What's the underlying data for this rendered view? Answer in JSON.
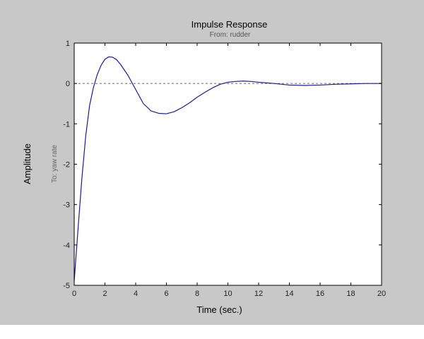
{
  "chart_data": {
    "type": "line",
    "title": "Impulse Response",
    "subtitle": "From: rudder",
    "xlabel": "Time (sec.)",
    "ylabel": "Amplitude",
    "channel_label": "To: yaw rate",
    "xlim": [
      0,
      20
    ],
    "ylim": [
      -5,
      1
    ],
    "xticks": [
      0,
      2,
      4,
      6,
      8,
      10,
      12,
      14,
      16,
      18,
      20
    ],
    "yticks": [
      -5,
      -4,
      -3,
      -2,
      -1,
      0,
      1
    ],
    "grid": false,
    "zero_line": "dashed",
    "colors": {
      "figure_background": "#c8c8c8",
      "axes_background": "#ffffff",
      "line": "#1a1aa0",
      "zero_line": "#555555"
    },
    "series": [
      {
        "x": [
          0,
          0.25,
          0.5,
          0.75,
          1.0,
          1.25,
          1.5,
          1.75,
          2.0,
          2.25,
          2.5,
          2.75,
          3.0,
          3.5,
          4.0,
          4.5,
          5.0,
          5.5,
          6.0,
          6.5,
          7.0,
          7.5,
          8.0,
          8.5,
          9.0,
          9.5,
          10.0,
          10.5,
          11.0,
          11.5,
          12.0,
          13.0,
          14.0,
          15.0,
          16.0,
          17.0,
          18.0,
          19.0,
          20.0
        ],
        "y": [
          -4.9,
          -3.6,
          -2.35,
          -1.3,
          -0.55,
          -0.1,
          0.22,
          0.45,
          0.6,
          0.66,
          0.65,
          0.59,
          0.48,
          0.2,
          -0.15,
          -0.5,
          -0.68,
          -0.74,
          -0.75,
          -0.7,
          -0.6,
          -0.48,
          -0.34,
          -0.22,
          -0.11,
          -0.02,
          0.03,
          0.05,
          0.06,
          0.05,
          0.03,
          0.0,
          -0.04,
          -0.05,
          -0.04,
          -0.02,
          -0.01,
          0.0,
          0.0
        ]
      }
    ]
  }
}
